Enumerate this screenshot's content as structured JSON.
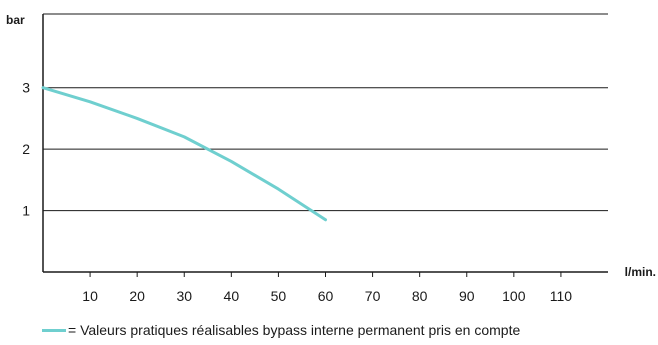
{
  "chart_data": {
    "type": "line",
    "title": "",
    "xlabel": "l/min.",
    "ylabel": "bar",
    "x_ticks": [
      10,
      20,
      30,
      40,
      50,
      60,
      70,
      80,
      90,
      100,
      110
    ],
    "y_ticks": [
      1,
      2,
      3
    ],
    "xlim": [
      0,
      120
    ],
    "ylim": [
      0,
      4.2
    ],
    "grid": "horizontal",
    "legend_position": "bottom",
    "series": [
      {
        "name": "= Valeurs pratiques réalisables bypass interne permanent pris en compte",
        "color": "#6fcfcf",
        "x": [
          0,
          10,
          20,
          30,
          40,
          50,
          60
        ],
        "y": [
          3.0,
          2.77,
          2.5,
          2.2,
          1.8,
          1.35,
          0.85
        ]
      }
    ]
  },
  "legend": {
    "text": "= Valeurs pratiques réalisables bypass interne permanent pris en compte",
    "color": "#6fcfcf"
  }
}
